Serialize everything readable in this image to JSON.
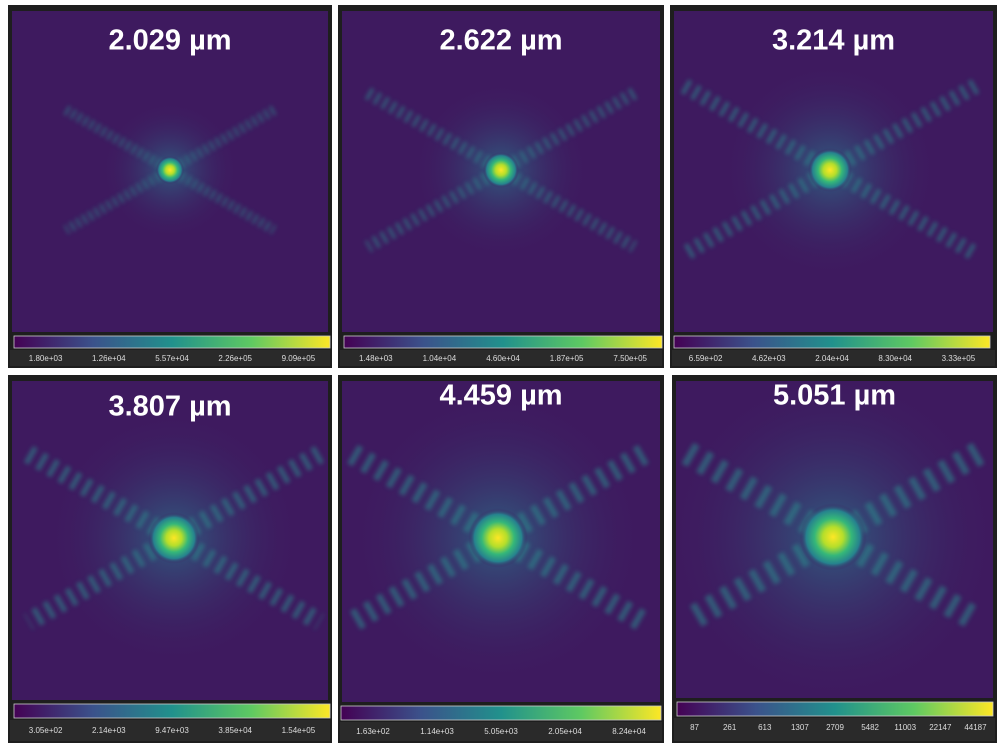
{
  "panels": [
    {
      "title": "2.029 µm",
      "colorbar_ticks": [
        "1.80e+03",
        "1.26e+04",
        "5.57e+04",
        "2.26e+05",
        "9.09e+05"
      ]
    },
    {
      "title": "2.622 µm",
      "colorbar_ticks": [
        "1.48e+03",
        "1.04e+04",
        "4.60e+04",
        "1.87e+05",
        "7.50e+05"
      ]
    },
    {
      "title": "3.214 µm",
      "colorbar_ticks": [
        "6.59e+02",
        "4.62e+03",
        "2.04e+04",
        "8.30e+04",
        "3.33e+05"
      ]
    },
    {
      "title": "3.807 µm",
      "colorbar_ticks": [
        "3.05e+02",
        "2.14e+03",
        "9.47e+03",
        "3.85e+04",
        "1.54e+05"
      ]
    },
    {
      "title": "4.459 µm",
      "colorbar_ticks": [
        "1.63e+02",
        "1.14e+03",
        "5.05e+03",
        "2.05e+04",
        "8.24e+04"
      ]
    },
    {
      "title": "5.051 µm",
      "colorbar_ticks": [
        "87",
        "261",
        "613",
        "1307",
        "2709",
        "5482",
        "11003",
        "22147",
        "44187"
      ]
    }
  ]
}
